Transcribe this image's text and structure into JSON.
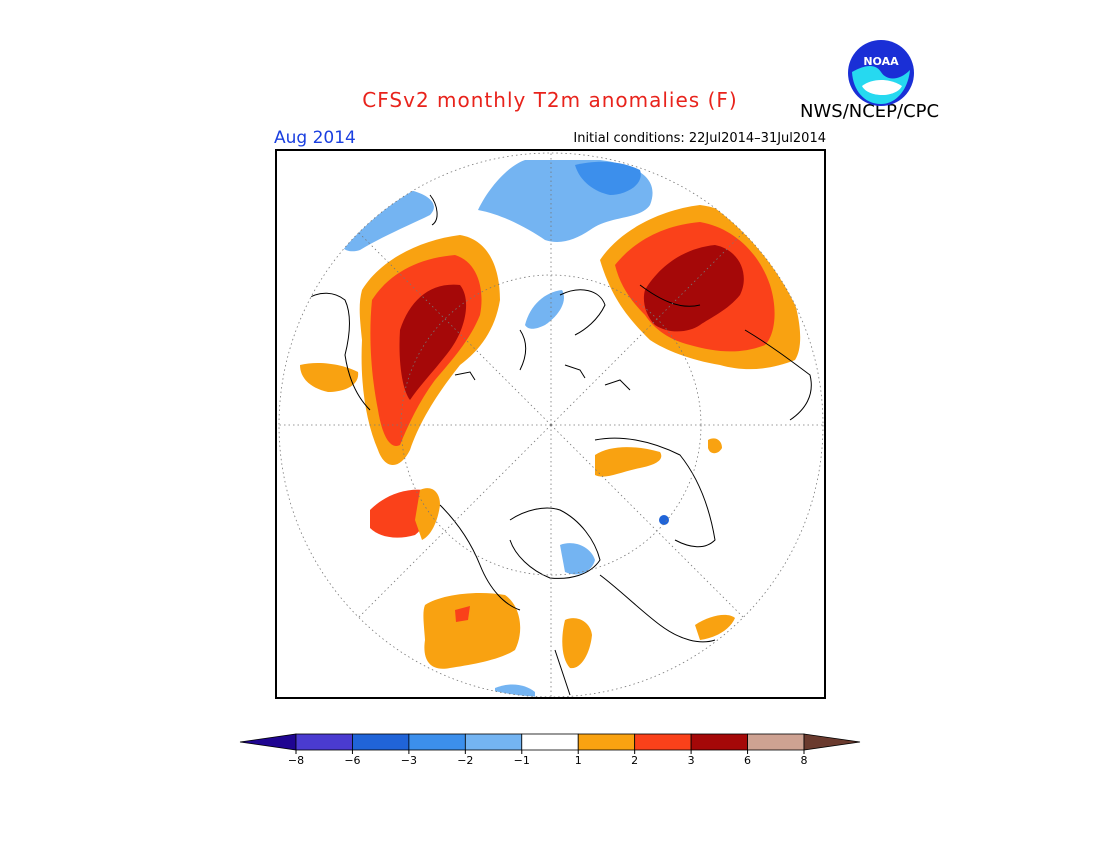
{
  "title": "CFSv2 monthly T2m anomalies (F)",
  "org": "NWS/NCEP/CPC",
  "logo_text": "NOAA",
  "month": "Aug 2014",
  "initial_conditions": "Initial conditions: 22Jul2014–31Jul2014",
  "colorbar": {
    "bins": [
      {
        "color": "#1f0591"
      },
      {
        "color": "#4a3bd0"
      },
      {
        "color": "#2064d8"
      },
      {
        "color": "#3c8fec"
      },
      {
        "color": "#74b4f2"
      },
      {
        "color": "#ffffff"
      },
      {
        "color": "#f9a211"
      },
      {
        "color": "#fa411a"
      },
      {
        "color": "#a50808"
      },
      {
        "color": "#cea292"
      },
      {
        "color": "#6a3a2e"
      }
    ],
    "labels": [
      "−8",
      "−6",
      "−3",
      "−2",
      "−1",
      "1",
      "2",
      "3",
      "6",
      "8"
    ]
  },
  "colors": {
    "light_blue": "#74b4f2",
    "blue": "#3c8fec",
    "deep_blue": "#2064d8",
    "orange": "#f9a211",
    "red": "#fa411a",
    "dark_red": "#a50808"
  }
}
